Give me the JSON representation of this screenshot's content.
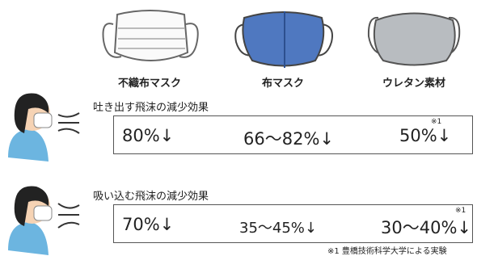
{
  "masks": [
    {
      "label": "不織布マスク"
    },
    {
      "label": "布マスク"
    },
    {
      "label": "ウレタン素材"
    }
  ],
  "rows": [
    {
      "title": "吐き出す飛沫の減少効果",
      "values": [
        "80%↓",
        "66〜82%↓",
        "50%↓"
      ],
      "note": "※1"
    },
    {
      "title": "吸い込む飛沫の減少効果",
      "values": [
        "70%↓",
        "35〜45%↓",
        "30〜40%↓"
      ],
      "note": "※1"
    }
  ],
  "footnote": "※1 豊橋技術科学大学による実験"
}
